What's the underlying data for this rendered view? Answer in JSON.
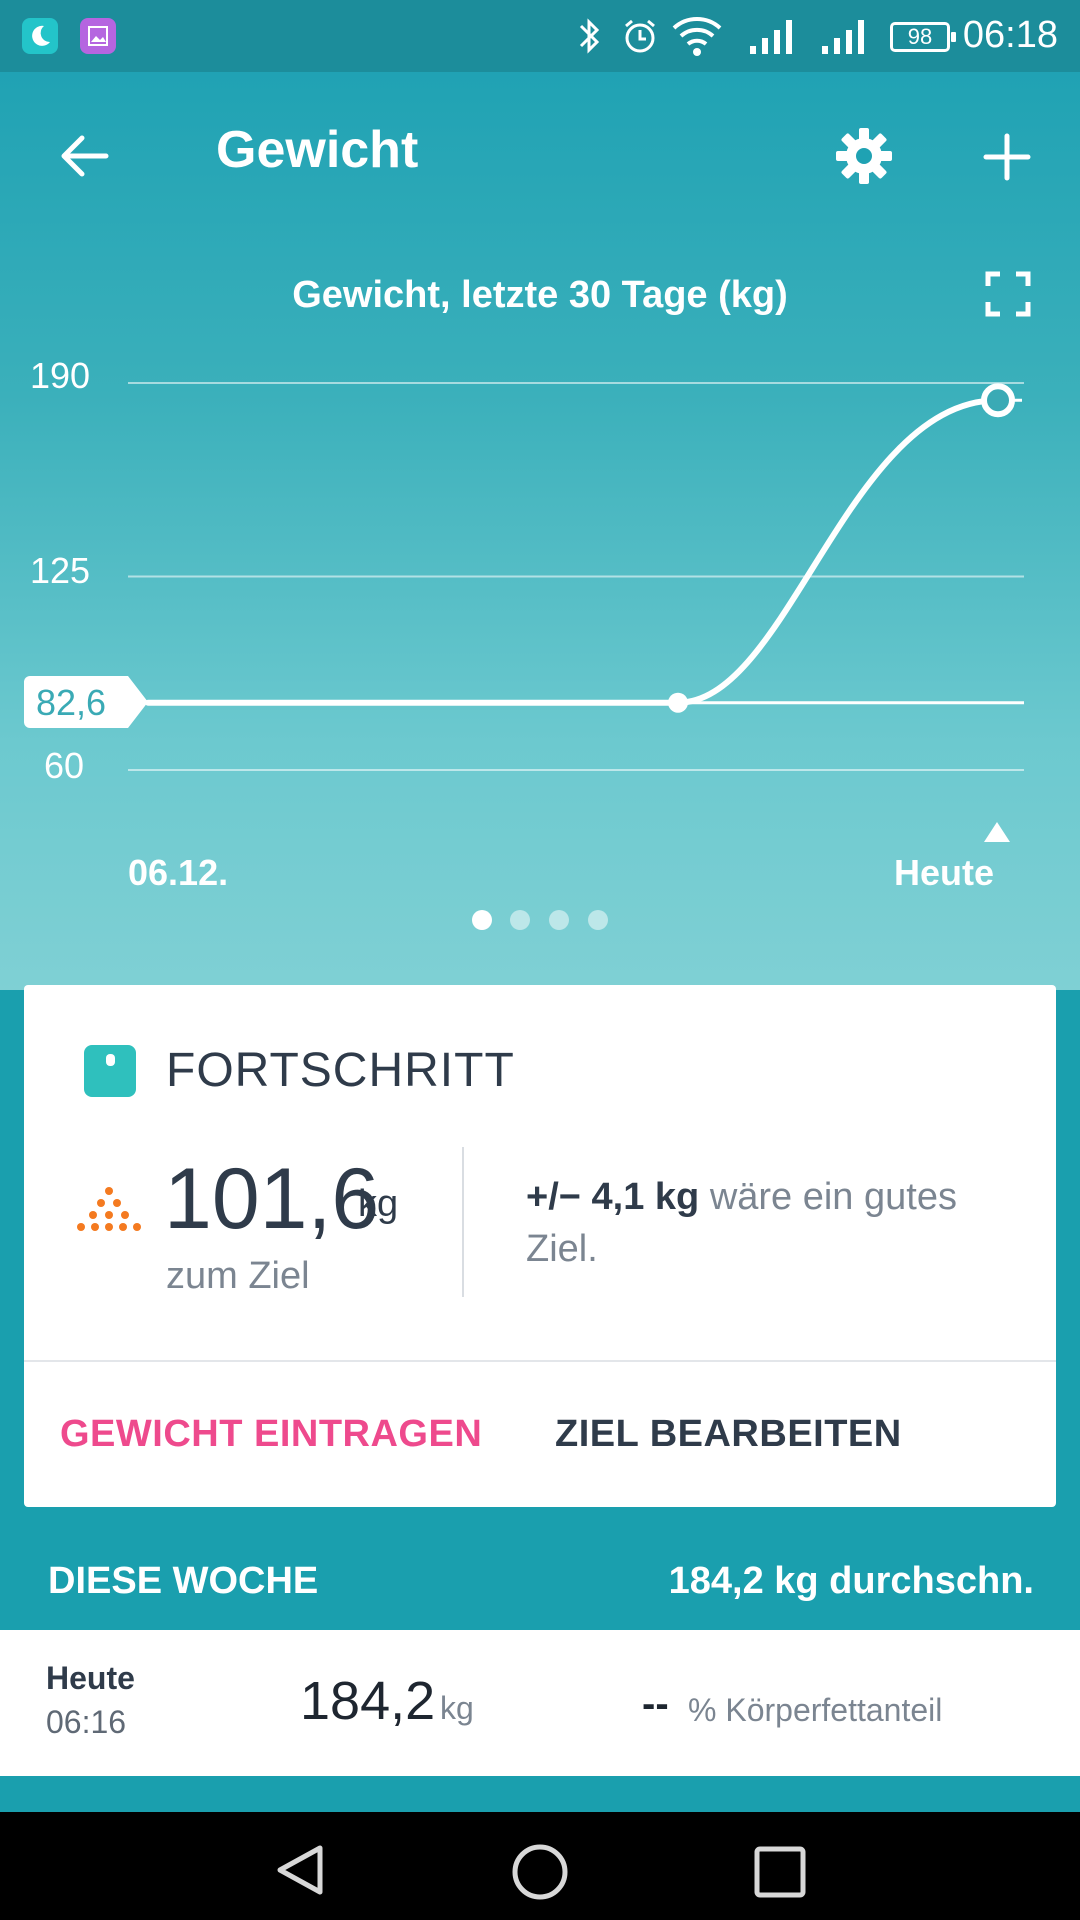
{
  "status_bar": {
    "time": "06:18",
    "battery": "98",
    "icons": [
      "moon-app-icon",
      "gallery-app-icon",
      "bluetooth-icon",
      "alarm-icon",
      "wifi-icon",
      "signal-icon",
      "signal-icon-2",
      "battery-icon"
    ]
  },
  "header": {
    "title": "Gewicht",
    "back_icon": "arrow-left-icon",
    "settings_icon": "gear-icon",
    "add_icon": "plus-icon"
  },
  "chart_data": {
    "type": "line",
    "title": "Gewicht, letzte 30 Tage (kg)",
    "y_ticks": [
      "190",
      "125",
      "60"
    ],
    "ylim": [
      60,
      190
    ],
    "reference_value": 82.6,
    "reference_label": "82,6",
    "x_start_label": "06.12.",
    "x_end_label": "Heute",
    "series": [
      {
        "values": [
          82.6,
          82.6,
          184.2
        ]
      }
    ],
    "grid": true
  },
  "pager": {
    "pages": 4,
    "active_index": 0
  },
  "progress_card": {
    "title": "FORTSCHRITT",
    "remaining_value": "101,6",
    "remaining_unit": "kg",
    "remaining_label": "zum Ziel",
    "suggestion_prefix": "+/−",
    "suggestion_amount": "4,1 kg",
    "suggestion_text": "wäre ein gutes Ziel.",
    "log_button": "GEWICHT EINTRAGEN",
    "edit_button": "ZIEL BEARBEITEN",
    "colors": {
      "log_button": "#ee4a8d",
      "edit_button": "#2f3b4a",
      "accent": "#2fc0bd",
      "trend_dots": "#f47a20"
    }
  },
  "week_section": {
    "label": "DIESE WOCHE",
    "average": "184,2 kg durchschn."
  },
  "entries": [
    {
      "day": "Heute",
      "time": "06:16",
      "value": "184,2",
      "unit": "kg",
      "fat_value": "--",
      "fat_label": "% Körperfettanteil"
    }
  ],
  "nav": {
    "back": "nav-back-icon",
    "home": "nav-home-icon",
    "recent": "nav-recent-icon"
  }
}
